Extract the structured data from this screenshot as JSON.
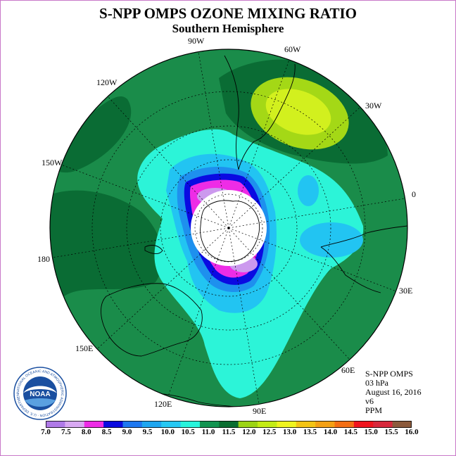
{
  "title": "S-NPP OMPS OZONE MIXING RATIO",
  "subtitle": "Southern Hemisphere",
  "longitude_labels": {
    "w90": "90W",
    "w60": "60W",
    "w120": "120W",
    "w30": "30W",
    "w150": "150W",
    "zero": "0",
    "l180": "180",
    "e30": "30E",
    "e150": "150E",
    "e60": "60E",
    "e120": "120E",
    "e90": "90E"
  },
  "info": {
    "product": "S-NPP OMPS",
    "level": "03 hPa",
    "date": "August 16, 2016",
    "version": "v6",
    "units": "PPM"
  },
  "logo": {
    "text": "NOAA",
    "ring_text": "NATIONAL OCEANIC AND ATMOSPHERIC ADMINISTRATION · U.S. DEPARTMENT OF COMMERCE"
  },
  "colorbar": {
    "ticks": [
      "7.0",
      "7.5",
      "8.0",
      "8.5",
      "9.0",
      "9.5",
      "10.0",
      "10.5",
      "11.0",
      "11.5",
      "12.0",
      "12.5",
      "13.0",
      "13.5",
      "14.0",
      "14.5",
      "15.0",
      "15.5",
      "16.0"
    ],
    "colors": [
      "#b07ae8",
      "#d8a8f2",
      "#ee2ce6",
      "#0a0ae0",
      "#1e78f0",
      "#1ea6f0",
      "#26c8f4",
      "#28f4dc",
      "#129450",
      "#0a6e30",
      "#9cd414",
      "#c4ec14",
      "#f0f41e",
      "#f4c414",
      "#f4a014",
      "#f46e14",
      "#f0141e",
      "#d8283c",
      "#8c5a3c"
    ]
  },
  "map_colors": {
    "background": "#1a8c4a",
    "dark_green": "#0a6c34",
    "cyan": "#2cf4d8",
    "light_blue": "#22c4f2",
    "mid_blue": "#1e90ee",
    "blue": "#0a0ae2",
    "magenta": "#ee2ce6",
    "lavender": "#cc99ee",
    "yellow_green": "#a4d816",
    "yellow": "#d2f01e",
    "polar_night": "#ffffff"
  }
}
